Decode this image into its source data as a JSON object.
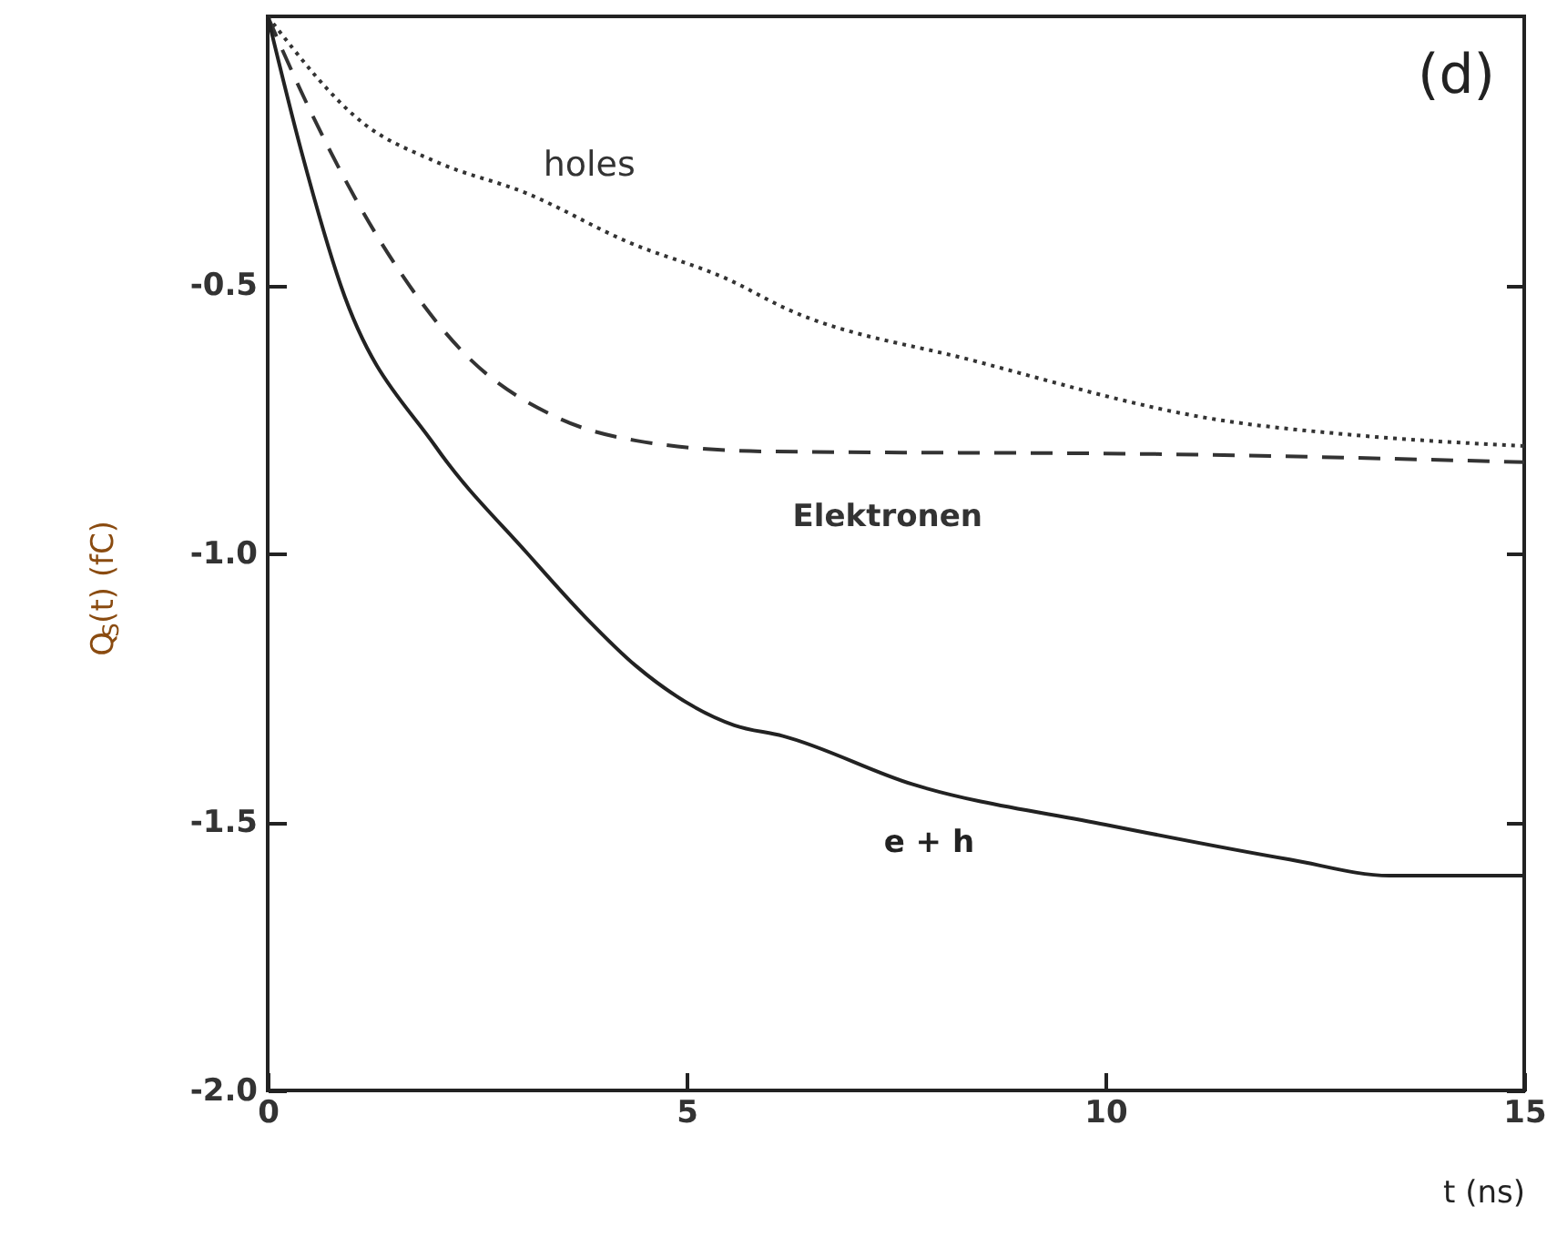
{
  "chart_data": {
    "type": "line",
    "xlabel": "t (ns)",
    "ylabel": "Q$_{S}$(t)  (fC)",
    "xlim": [
      0,
      15
    ],
    "xticks": [
      0,
      5,
      10,
      15
    ],
    "ylim": [
      -2,
      0
    ],
    "yticks": [
      {
        "value": -2,
        "label": "-2.0"
      },
      {
        "value": -1.5,
        "label": "-1.5"
      },
      {
        "value": -1,
        "label": "-1.0"
      },
      {
        "value": -0.5,
        "label": "-0.5"
      }
    ],
    "grid": false,
    "marker": "none",
    "annotations": [
      "(d)"
    ],
    "series": [
      {
        "name": "holes",
        "color": "#333333",
        "line_style": "dotted",
        "x": [
          0,
          1.15,
          2,
          3.1,
          4.3,
          5.5,
          6.2,
          8.4,
          11.3,
          13,
          15
        ],
        "values": [
          0,
          -0.2,
          -0.27,
          -0.33,
          -0.42,
          -0.49,
          -0.545,
          -0.64,
          -0.75,
          -0.78,
          -0.8
        ]
      },
      {
        "name": "Elektronen",
        "color": "#333333",
        "line_style": "dashed",
        "x": [
          0,
          0.43,
          1.43,
          2.3,
          3.5,
          4.4,
          5.9,
          10.6,
          15
        ],
        "values": [
          0,
          -0.15,
          -0.44,
          -0.62,
          -0.75,
          -0.79,
          -0.81,
          -0.815,
          -0.83
        ]
      },
      {
        "name": "e + h",
        "color": "#222222",
        "line_style": "solid",
        "x": [
          0,
          0.4,
          0.87,
          2,
          3.1,
          3.8,
          4.4,
          5.57,
          6.15,
          7.7,
          10,
          12.2,
          13.4,
          15
        ],
        "values": [
          0,
          -0.25,
          -0.5,
          -0.8,
          -1.0,
          -1.12,
          -1.21,
          -1.32,
          -1.34,
          -1.43,
          -1.505,
          -1.57,
          -1.6,
          -1.6
        ]
      }
    ]
  }
}
